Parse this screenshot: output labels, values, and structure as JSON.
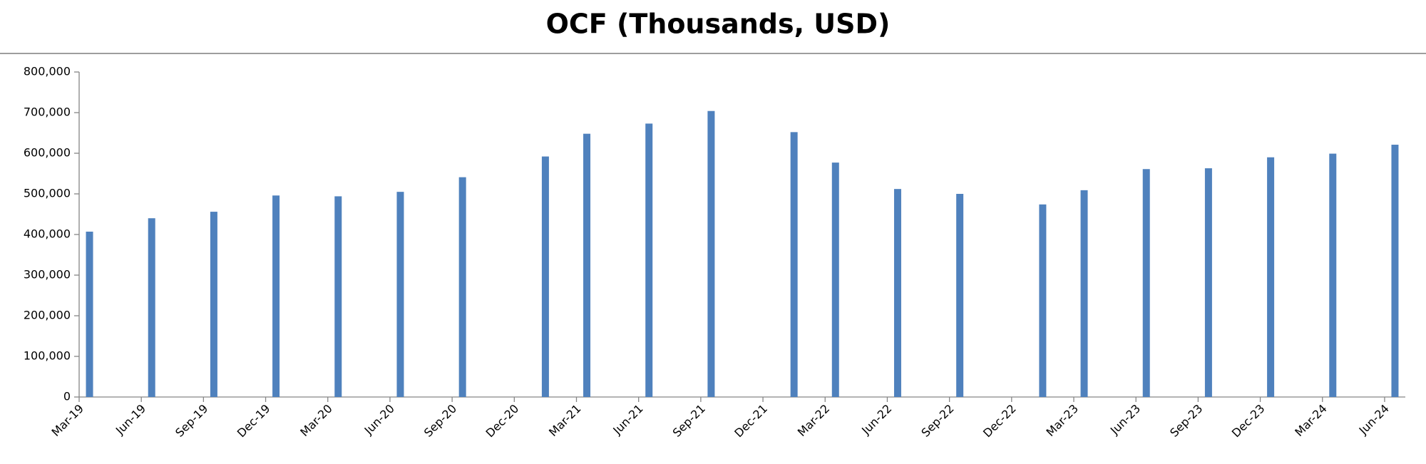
{
  "chart_data": {
    "type": "bar",
    "title": "OCF (Thousands, USD)",
    "x": [
      "2019-03",
      "2019-06",
      "2019-09",
      "2019-12",
      "2020-03",
      "2020-06",
      "2020-09",
      "2021-01",
      "2021-03",
      "2021-06",
      "2021-09",
      "2022-01",
      "2022-03",
      "2022-06",
      "2022-09",
      "2023-01",
      "2023-03",
      "2023-06",
      "2023-09",
      "2023-12",
      "2024-03",
      "2024-06"
    ],
    "values": [
      407000,
      440000,
      456000,
      496000,
      494000,
      505000,
      541000,
      592000,
      648000,
      673000,
      704000,
      652000,
      577000,
      512000,
      500000,
      474000,
      509000,
      561000,
      563000,
      590000,
      599000,
      621000
    ],
    "color": "#4f81bd",
    "xlim": [
      "2019-03",
      "2024-06"
    ],
    "xticks": [
      {
        "value": "2019-03",
        "label": "Mar-19"
      },
      {
        "value": "2019-06",
        "label": "Jun-19"
      },
      {
        "value": "2019-09",
        "label": "Sep-19"
      },
      {
        "value": "2019-12",
        "label": "Dec-19"
      },
      {
        "value": "2020-03",
        "label": "Mar-20"
      },
      {
        "value": "2020-06",
        "label": "Jun-20"
      },
      {
        "value": "2020-09",
        "label": "Sep-20"
      },
      {
        "value": "2020-12",
        "label": "Dec-20"
      },
      {
        "value": "2021-03",
        "label": "Mar-21"
      },
      {
        "value": "2021-06",
        "label": "Jun-21"
      },
      {
        "value": "2021-09",
        "label": "Sep-21"
      },
      {
        "value": "2021-12",
        "label": "Dec-21"
      },
      {
        "value": "2022-03",
        "label": "Mar-22"
      },
      {
        "value": "2022-06",
        "label": "Jun-22"
      },
      {
        "value": "2022-09",
        "label": "Sep-22"
      },
      {
        "value": "2022-12",
        "label": "Dec-22"
      },
      {
        "value": "2023-03",
        "label": "Mar-23"
      },
      {
        "value": "2023-06",
        "label": "Jun-23"
      },
      {
        "value": "2023-09",
        "label": "Sep-23"
      },
      {
        "value": "2023-12",
        "label": "Dec-23"
      },
      {
        "value": "2024-03",
        "label": "Mar-24"
      },
      {
        "value": "2024-06",
        "label": "Jun-24"
      }
    ],
    "ylim": [
      0,
      800000
    ],
    "yticks": [
      0,
      {
        "value": 100000,
        "label": "100,000"
      },
      {
        "value": 200000,
        "label": "200,000"
      },
      {
        "value": 300000,
        "label": "300,000"
      },
      {
        "value": 400000,
        "label": "400,000"
      },
      {
        "value": 500000,
        "label": "500,000"
      },
      {
        "value": 600000,
        "label": "600,000"
      },
      {
        "value": 700000,
        "label": "700,000"
      },
      {
        "value": 800000,
        "label": "800,000"
      }
    ],
    "grid": false
  }
}
